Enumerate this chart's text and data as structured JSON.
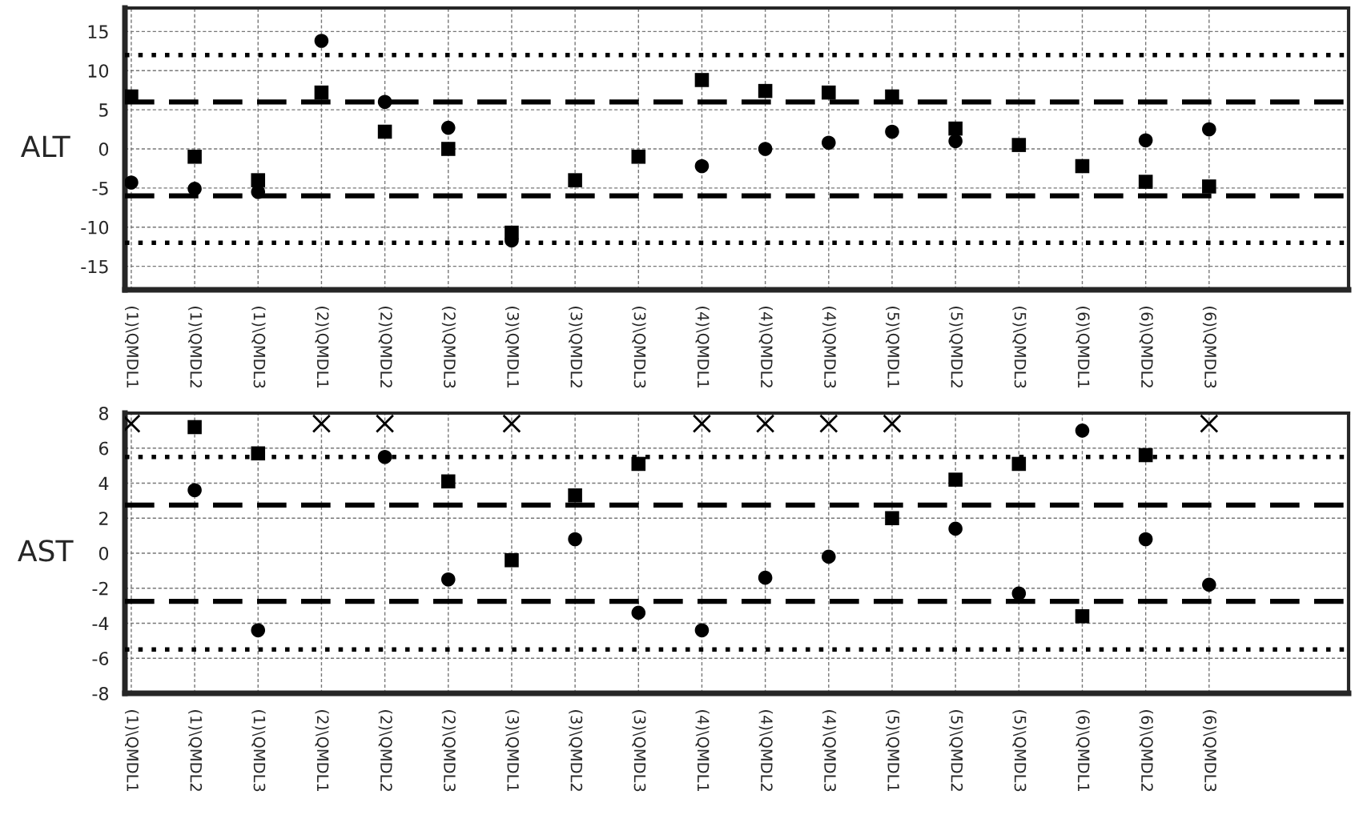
{
  "chart_data": [
    {
      "type": "scatter",
      "ylabel": "ALT",
      "categories": [
        "(1)\\QMDL1",
        "(1)\\QMDL2",
        "(1)\\QMDL3",
        "(2)\\QMDL1",
        "(2)\\QMDL2",
        "(2)\\QMDL3",
        "(3)\\QMDL1",
        "(3)\\QMDL2",
        "(3)\\QMDL3",
        "(4)\\QMDL1",
        "(4)\\QMDL2",
        "(4)\\QMDL3",
        "(5)\\QMDL1",
        "(5)\\QMDL2",
        "(5)\\QMDL3",
        "(6)\\QMDL1",
        "(6)\\QMDL2",
        "(6)\\QMDL3"
      ],
      "series": [
        {
          "color": "#000000",
          "marker": "circle",
          "values": [
            -4.3,
            -5.1,
            -5.5,
            13.8,
            6.0,
            2.7,
            -11.7,
            null,
            null,
            -2.2,
            0.0,
            0.8,
            2.2,
            1.0,
            null,
            null,
            1.1,
            2.5
          ]
        },
        {
          "color": "#000000",
          "marker": "square",
          "values": [
            6.7,
            -1.0,
            -4.0,
            7.2,
            2.2,
            0.0,
            -10.7,
            -4.0,
            -1.0,
            8.8,
            7.4,
            7.2,
            6.7,
            2.6,
            0.5,
            -2.2,
            -4.2,
            -4.8
          ]
        }
      ],
      "ylim": [
        -18,
        18
      ],
      "yticks": [
        -15,
        -10,
        -5,
        0,
        5,
        10,
        15
      ],
      "grid": true,
      "ref_lines": [
        {
          "axis": "y",
          "value": 6,
          "line_style": "dashed"
        },
        {
          "axis": "y",
          "value": -6,
          "line_style": "dashed"
        },
        {
          "axis": "y",
          "value": 12,
          "line_style": "dotted"
        },
        {
          "axis": "y",
          "value": -12,
          "line_style": "dotted"
        }
      ]
    },
    {
      "type": "scatter",
      "ylabel": "AST",
      "categories": [
        "(1)\\QMDL1",
        "(1)\\QMDL2",
        "(1)\\QMDL3",
        "(2)\\QMDL1",
        "(2)\\QMDL2",
        "(2)\\QMDL3",
        "(3)\\QMDL1",
        "(3)\\QMDL2",
        "(3)\\QMDL3",
        "(4)\\QMDL1",
        "(4)\\QMDL2",
        "(4)\\QMDL3",
        "(5)\\QMDL1",
        "(5)\\QMDL2",
        "(5)\\QMDL3",
        "(6)\\QMDL1",
        "(6)\\QMDL2",
        "(6)\\QMDL3"
      ],
      "series": [
        {
          "color": "#000000",
          "marker": "circle",
          "values": [
            null,
            3.6,
            -4.4,
            null,
            5.5,
            -1.5,
            null,
            0.8,
            -3.4,
            -4.4,
            -1.4,
            -0.2,
            null,
            1.4,
            -2.3,
            7.0,
            0.8,
            -1.8
          ]
        },
        {
          "color": "#000000",
          "marker": "square",
          "values": [
            null,
            7.2,
            5.7,
            null,
            null,
            4.1,
            -0.4,
            3.3,
            5.1,
            null,
            null,
            null,
            2.0,
            4.2,
            5.1,
            -3.6,
            5.6,
            null
          ]
        },
        {
          "color": "#000000",
          "marker": "cross",
          "values": [
            7.4,
            null,
            null,
            7.4,
            7.4,
            null,
            7.4,
            null,
            null,
            7.4,
            7.4,
            7.4,
            7.4,
            null,
            null,
            null,
            null,
            7.4
          ]
        }
      ],
      "ylim": [
        -8,
        8
      ],
      "yticks": [
        -8,
        -6,
        -4,
        -2,
        0,
        2,
        4,
        6,
        8
      ],
      "grid": true,
      "ref_lines": [
        {
          "axis": "y",
          "value": 2.75,
          "line_style": "dashed"
        },
        {
          "axis": "y",
          "value": -2.75,
          "line_style": "dashed"
        },
        {
          "axis": "y",
          "value": 5.5,
          "line_style": "dotted"
        },
        {
          "axis": "y",
          "value": -5.5,
          "line_style": "dotted"
        }
      ]
    }
  ]
}
